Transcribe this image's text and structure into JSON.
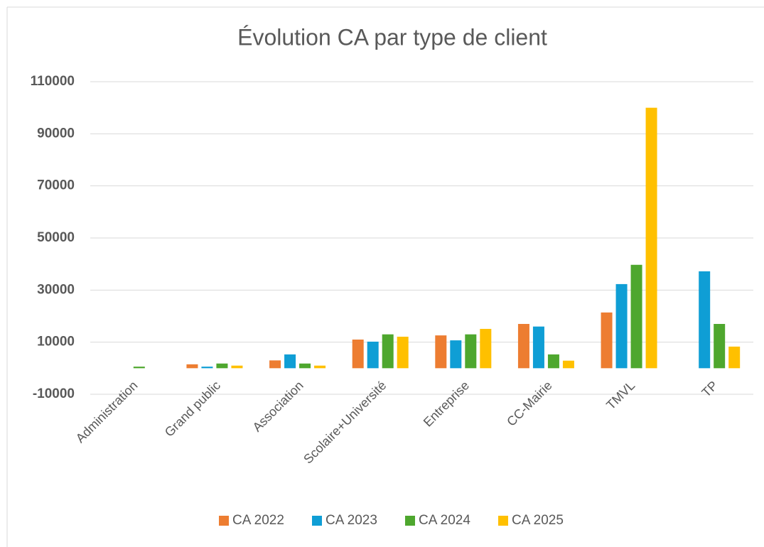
{
  "chart_data": {
    "type": "bar",
    "title": "Évolution CA par type de client",
    "categories": [
      "Administration",
      "Grand public",
      "Association",
      "Scolaire+Université",
      "Entreprise",
      "CC-Mairie",
      "TMVL",
      "TP"
    ],
    "series": [
      {
        "name": "CA 2022",
        "color": "#ED7D31",
        "values": [
          0,
          1500,
          3000,
          11000,
          12600,
          17000,
          21400,
          0
        ]
      },
      {
        "name": "CA 2023",
        "color": "#0F9ED5",
        "values": [
          0,
          600,
          5300,
          10200,
          10700,
          16000,
          32300,
          37200
        ]
      },
      {
        "name": "CA 2024",
        "color": "#4EA72E",
        "values": [
          600,
          1800,
          1800,
          13000,
          13000,
          5300,
          39700,
          17000
        ]
      },
      {
        "name": "CA 2025",
        "color": "#FFC000",
        "values": [
          0,
          1000,
          1000,
          12100,
          15100,
          2900,
          100000,
          8300
        ]
      }
    ],
    "ylim": [
      -10000,
      110000
    ],
    "yticks": [
      -10000,
      10000,
      30000,
      50000,
      70000,
      90000,
      110000
    ],
    "grid": true,
    "legend": "bottom"
  }
}
